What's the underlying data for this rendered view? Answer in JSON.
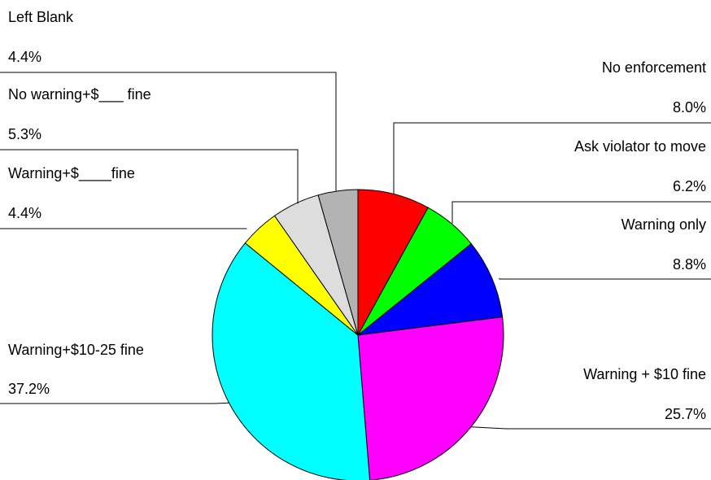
{
  "chart_data": {
    "type": "pie",
    "slices": [
      {
        "label": "No enforcement",
        "value_label": "8.0%",
        "value": 8.0,
        "color": "#ff0000"
      },
      {
        "label": "Ask violator to move",
        "value_label": "6.2%",
        "value": 6.2,
        "color": "#00ff00"
      },
      {
        "label": "Warning only",
        "value_label": "8.8%",
        "value": 8.8,
        "color": "#0000ff"
      },
      {
        "label": "Warning + $10 fine",
        "value_label": "25.7%",
        "value": 25.7,
        "color": "#ff00ff"
      },
      {
        "label": "Warning+$10-25 fine",
        "value_label": "37.2%",
        "value": 37.2,
        "color": "#00ffff"
      },
      {
        "label": "Warning+$____fine",
        "value_label": "4.4%",
        "value": 4.4,
        "color": "#ffff00"
      },
      {
        "label": "No warning+$___ fine",
        "value_label": "5.3%",
        "value": 5.3,
        "color": "#dddddd"
      },
      {
        "label": "Left Blank",
        "value_label": "4.4%",
        "value": 4.4,
        "color": "#b3b3b3"
      }
    ],
    "start_angle": "12 o'clock",
    "direction": "clockwise"
  }
}
